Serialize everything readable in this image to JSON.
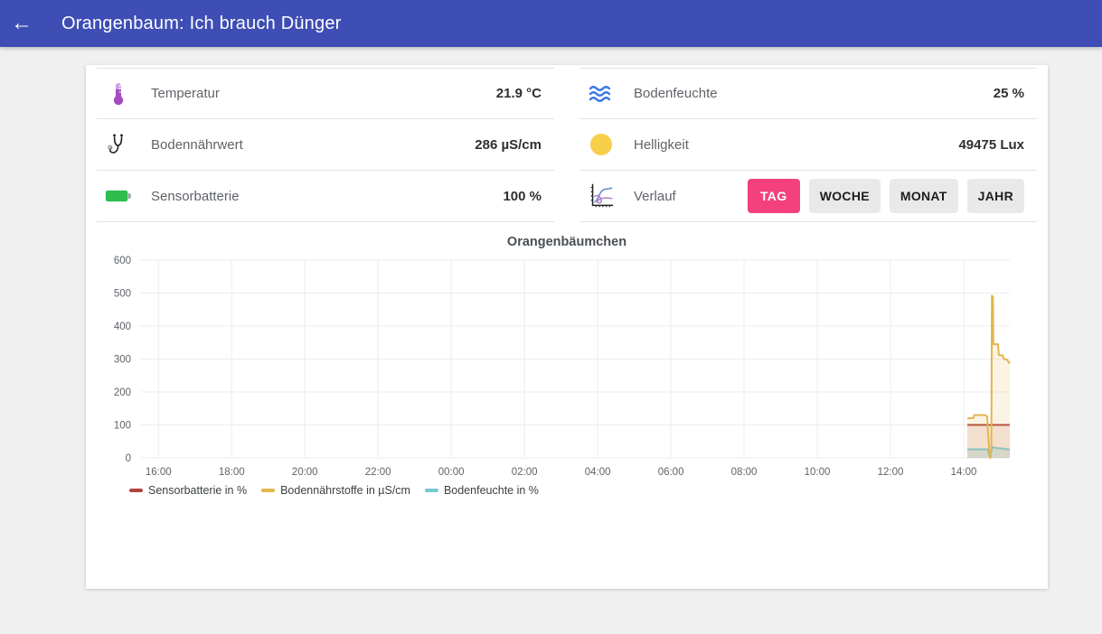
{
  "header": {
    "title": "Orangenbaum: Ich brauch Dünger",
    "back_icon": "←",
    "background_color": "#3e4eb4"
  },
  "sensors": {
    "temperature": {
      "label": "Temperatur",
      "value": "21.9 °C",
      "icon": "thermometer-icon",
      "icon_color": "#a44bc0"
    },
    "soil_moisture": {
      "label": "Bodenfeuchte",
      "value": "25 %",
      "icon": "water-waves-icon",
      "icon_color": "#3f78e0"
    },
    "soil_nutrient": {
      "label": "Bodennährwert",
      "value": "286 µS/cm",
      "icon": "stethoscope-icon",
      "icon_color": "#222222"
    },
    "brightness": {
      "label": "Helligkeit",
      "value": "49475 Lux",
      "icon": "sun-icon",
      "icon_color": "#f7cf4a"
    },
    "battery": {
      "label": "Sensorbatterie",
      "value": "100 %",
      "icon": "battery-icon",
      "icon_color": "#2ebd4e"
    },
    "history": {
      "label": "Verlauf",
      "icon": "line-chart-icon",
      "active_color": "#f4407d",
      "buttons": [
        {
          "label": "TAG",
          "active": true
        },
        {
          "label": "WOCHE",
          "active": false
        },
        {
          "label": "MONAT",
          "active": false
        },
        {
          "label": "JAHR",
          "active": false
        }
      ]
    }
  },
  "chart_data": {
    "type": "line",
    "title": "Orangenbäumchen",
    "xlabel": "",
    "ylabel": "",
    "x_unit": "time of day in hours (values > 24 are the next day)",
    "xlim": [
      15.5,
      39.26
    ],
    "ylim": [
      0,
      600
    ],
    "grid": true,
    "legend_position": "bottom-left",
    "yticks": [
      0,
      100,
      200,
      300,
      400,
      500,
      600
    ],
    "xticks": [
      {
        "t": 16,
        "label": "16:00"
      },
      {
        "t": 18,
        "label": "18:00"
      },
      {
        "t": 20,
        "label": "20:00"
      },
      {
        "t": 22,
        "label": "22:00"
      },
      {
        "t": 24,
        "label": "00:00"
      },
      {
        "t": 26,
        "label": "02:00"
      },
      {
        "t": 28,
        "label": "04:00"
      },
      {
        "t": 30,
        "label": "06:00"
      },
      {
        "t": 32,
        "label": "08:00"
      },
      {
        "t": 34,
        "label": "10:00"
      },
      {
        "t": 36,
        "label": "12:00"
      },
      {
        "t": 38,
        "label": "14:00"
      }
    ],
    "series": [
      {
        "name": "Sensorbatterie in %",
        "color": "#b0443c",
        "fill": "rgba(176,68,60,0.13)",
        "points": [
          [
            38.1,
            100
          ],
          [
            39.26,
            100
          ]
        ]
      },
      {
        "name": "Bodenfeuchte in %",
        "color": "#7cc5d2",
        "fill": "rgba(124,197,210,0.28)",
        "points": [
          [
            38.1,
            26
          ],
          [
            38.66,
            26
          ],
          [
            38.7,
            8
          ],
          [
            38.73,
            0
          ],
          [
            38.78,
            33
          ],
          [
            38.9,
            30
          ],
          [
            39.1,
            28
          ],
          [
            39.26,
            25
          ]
        ]
      },
      {
        "name": "Bodennährstoffe in µS/cm",
        "color": "#e3b54d",
        "fill": "rgba(227,181,77,0.15)",
        "points": [
          [
            38.1,
            120
          ],
          [
            38.27,
            121
          ],
          [
            38.29,
            130
          ],
          [
            38.58,
            130
          ],
          [
            38.64,
            126
          ],
          [
            38.7,
            20
          ],
          [
            38.73,
            0
          ],
          [
            38.755,
            30
          ],
          [
            38.77,
            492
          ],
          [
            38.8,
            488
          ],
          [
            38.81,
            345
          ],
          [
            38.94,
            345
          ],
          [
            38.96,
            312
          ],
          [
            39.07,
            310
          ],
          [
            39.1,
            300
          ],
          [
            39.18,
            298
          ],
          [
            39.26,
            286
          ]
        ]
      }
    ],
    "legend_order": [
      "Sensorbatterie in %",
      "Bodennährstoffe in µS/cm",
      "Bodenfeuchte in %"
    ]
  }
}
